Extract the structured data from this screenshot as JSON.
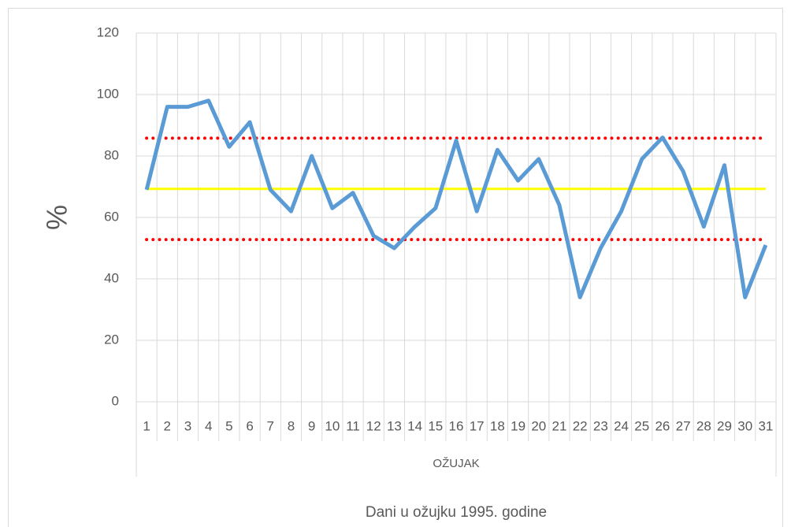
{
  "chart_data": {
    "type": "line",
    "ylabel": "%",
    "category_group": "OŽUJAK",
    "xlabel": "Dani u ožujku 1995. godine",
    "categories": [
      "1",
      "2",
      "3",
      "4",
      "5",
      "6",
      "7",
      "8",
      "9",
      "10",
      "11",
      "12",
      "13",
      "14",
      "15",
      "16",
      "17",
      "18",
      "19",
      "20",
      "21",
      "22",
      "23",
      "24",
      "25",
      "26",
      "27",
      "28",
      "29",
      "30",
      "31"
    ],
    "series": [
      {
        "color": "#5b9bd5",
        "line_style": "solid",
        "width": 5,
        "values": [
          69,
          96,
          96,
          98,
          83,
          91,
          69,
          62,
          80,
          63,
          68,
          54,
          50,
          57,
          63,
          85,
          62,
          82,
          72,
          79,
          64,
          34,
          50,
          62,
          79,
          86,
          75,
          57,
          77,
          34,
          51
        ]
      },
      {
        "color": "#ffff00",
        "line_style": "solid",
        "width": 3,
        "values": [
          69.3,
          69.3,
          69.3,
          69.3,
          69.3,
          69.3,
          69.3,
          69.3,
          69.3,
          69.3,
          69.3,
          69.3,
          69.3,
          69.3,
          69.3,
          69.3,
          69.3,
          69.3,
          69.3,
          69.3,
          69.3,
          69.3,
          69.3,
          69.3,
          69.3,
          69.3,
          69.3,
          69.3,
          69.3,
          69.3,
          69.3
        ]
      },
      {
        "color": "#ff0000",
        "line_style": "dotted",
        "width": 4,
        "values": [
          85.8,
          85.8,
          85.8,
          85.8,
          85.8,
          85.8,
          85.8,
          85.8,
          85.8,
          85.8,
          85.8,
          85.8,
          85.8,
          85.8,
          85.8,
          85.8,
          85.8,
          85.8,
          85.8,
          85.8,
          85.8,
          85.8,
          85.8,
          85.8,
          85.8,
          85.8,
          85.8,
          85.8,
          85.8,
          85.8,
          85.8
        ]
      },
      {
        "color": "#ff0000",
        "line_style": "dotted",
        "width": 4,
        "values": [
          52.8,
          52.8,
          52.8,
          52.8,
          52.8,
          52.8,
          52.8,
          52.8,
          52.8,
          52.8,
          52.8,
          52.8,
          52.8,
          52.8,
          52.8,
          52.8,
          52.8,
          52.8,
          52.8,
          52.8,
          52.8,
          52.8,
          52.8,
          52.8,
          52.8,
          52.8,
          52.8,
          52.8,
          52.8,
          52.8,
          52.8
        ]
      }
    ],
    "ylim": [
      0,
      120
    ],
    "yticks": [
      0,
      20,
      40,
      60,
      80,
      100,
      120
    ],
    "grid": true
  }
}
